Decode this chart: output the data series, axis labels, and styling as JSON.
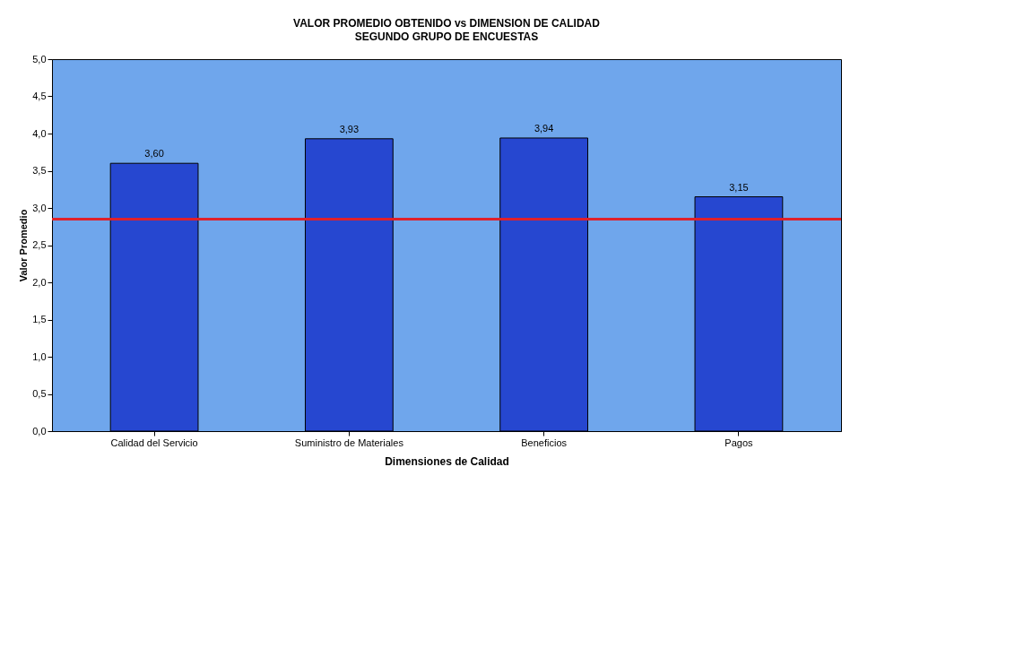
{
  "chart_data": {
    "type": "bar",
    "title": "VALOR PROMEDIO OBTENIDO vs DIMENSION  DE CALIDAD",
    "subtitle": "SEGUNDO GRUPO DE ENCUESTAS",
    "xlabel": "Dimensiones de Calidad",
    "ylabel": "Valor Promedio",
    "categories": [
      "Calidad del Servicio",
      "Suministro de Materiales",
      "Beneficios",
      "Pagos"
    ],
    "values": [
      3.6,
      3.93,
      3.94,
      3.15
    ],
    "value_labels": [
      "3,60",
      "3,93",
      "3,94",
      "3,15"
    ],
    "color": "#2647d0",
    "ylim": [
      0,
      5
    ],
    "yticks": [
      {
        "value": 0,
        "label": "0,0"
      },
      {
        "value": 0.5,
        "label": "0,5"
      },
      {
        "value": 1,
        "label": "1,0"
      },
      {
        "value": 1.5,
        "label": "1,5"
      },
      {
        "value": 2,
        "label": "2,0"
      },
      {
        "value": 2.5,
        "label": "2,5"
      },
      {
        "value": 3,
        "label": "3,0"
      },
      {
        "value": 3.5,
        "label": "3,5"
      },
      {
        "value": 4,
        "label": "4,0"
      },
      {
        "value": 4.5,
        "label": "4,5"
      },
      {
        "value": 5,
        "label": "5,0"
      }
    ],
    "ref_lines": [
      {
        "axis": "y",
        "value": 2.85,
        "label": null,
        "color": "#e0202a"
      }
    ],
    "grid": false
  }
}
